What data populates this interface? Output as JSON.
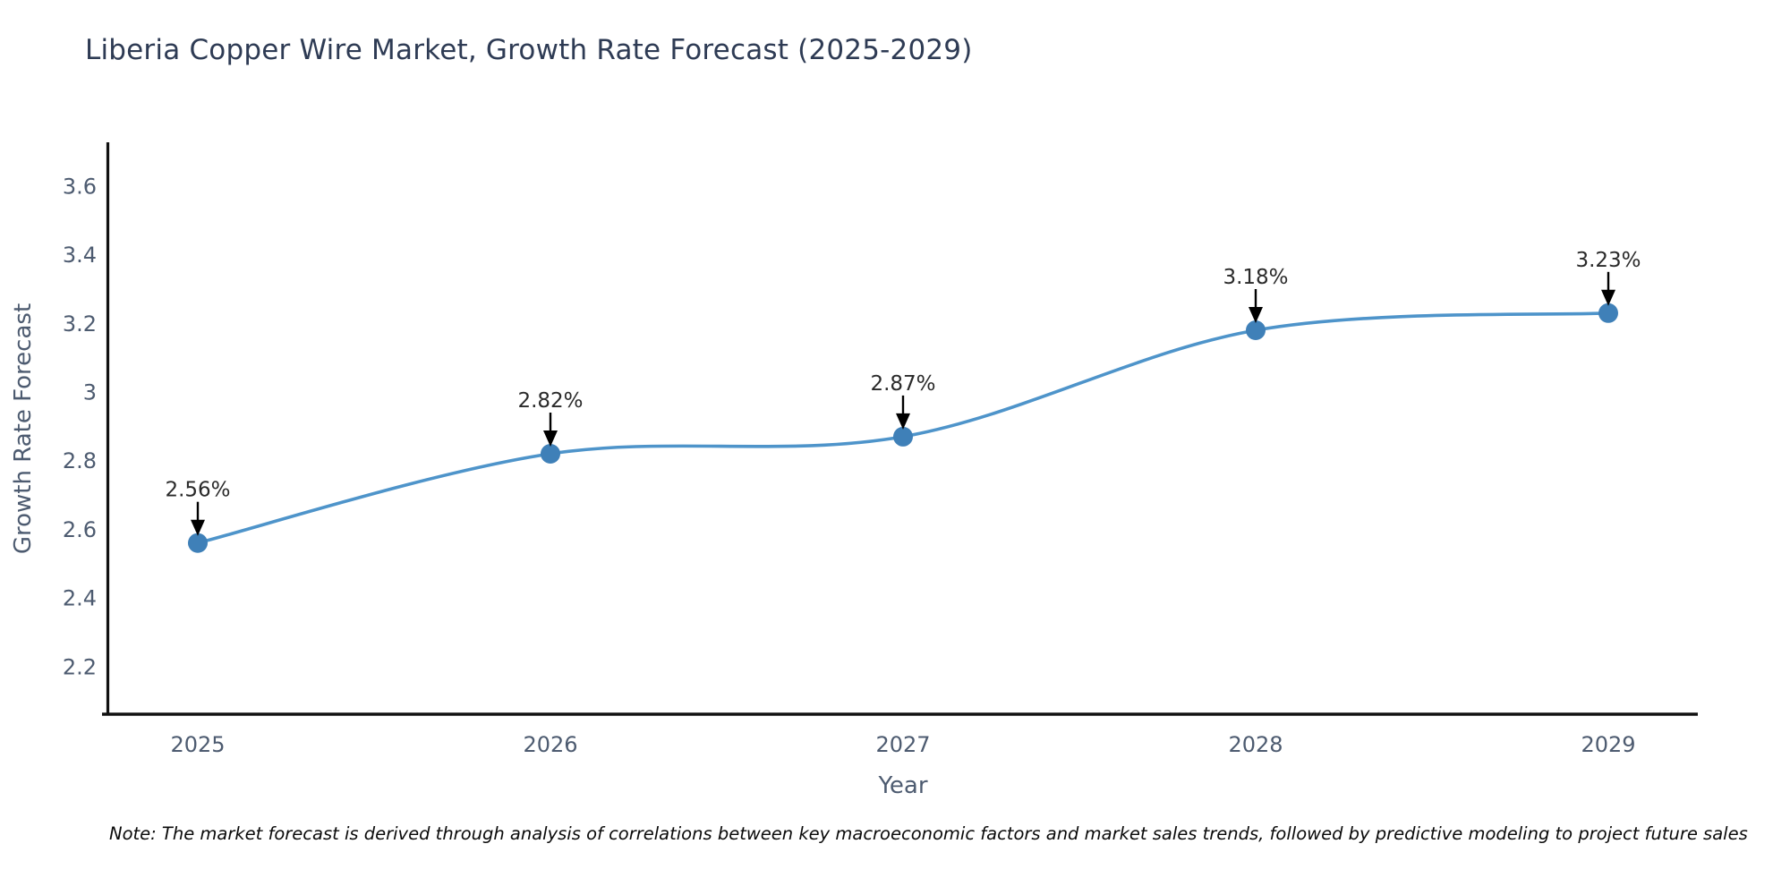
{
  "title": "Liberia Copper Wire Market, Growth Rate Forecast (2025-2029)",
  "note": "Note: The market forecast is derived through analysis of correlations between key macroeconomic factors and market sales trends, followed by predictive modeling to project future sales",
  "chart_data": {
    "type": "line",
    "curve": "spline",
    "title": "Liberia Copper Wire Market, Growth Rate Forecast (2025-2029)",
    "xlabel": "Year",
    "ylabel": "Growth Rate Forecast",
    "x": [
      2025,
      2026,
      2027,
      2028,
      2029
    ],
    "series": [
      {
        "name": "Growth Rate Forecast",
        "values": [
          2.56,
          2.82,
          2.87,
          3.18,
          3.23
        ]
      }
    ],
    "point_labels": [
      "2.56%",
      "2.82%",
      "2.87%",
      "3.18%",
      "3.23%"
    ],
    "xtick_labels": [
      "2025",
      "2026",
      "2027",
      "2028",
      "2029"
    ],
    "yticks": [
      2.2,
      2.4,
      2.6,
      2.8,
      3,
      3.2,
      3.4,
      3.6
    ],
    "ytick_labels": [
      "2.2",
      "2.4",
      "2.6",
      "2.8",
      "3",
      "3.2",
      "3.4",
      "3.6"
    ],
    "ylim": [
      2.06,
      3.73
    ],
    "grid": false,
    "legend_position": "none",
    "line_color": "#4e94ca",
    "marker_color": "#3f80b8",
    "axis_color": "#111111",
    "annotation_color": "#000000",
    "tick_color": "#4d5b70",
    "title_color": "#2e3b54"
  }
}
